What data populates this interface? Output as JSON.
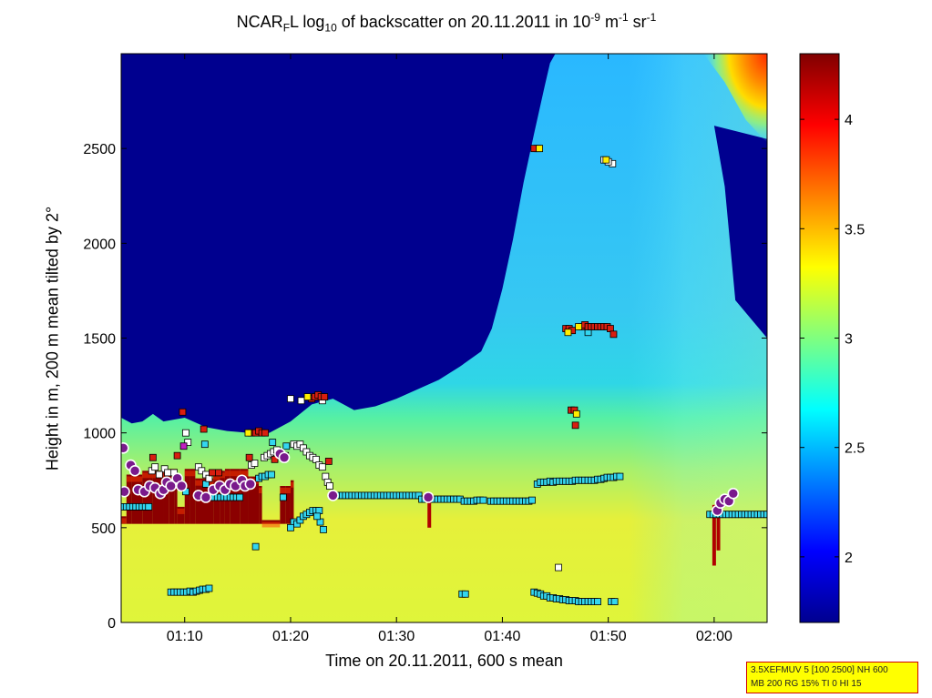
{
  "chart_data": {
    "type": "heatmap",
    "title": {
      "prefix": "NCAR",
      "sub1": "F",
      "mid1": "L log",
      "sub2": "10",
      "mid2": " of backscatter on 20.11.2011 in 10",
      "sup1": "-9",
      "mid3": " m",
      "sup2": "-1",
      "mid4": " sr",
      "sup3": "-1"
    },
    "xlabel": "Time on 20.11.2011, 600 s mean",
    "ylabel": "Height in m, 200 m mean tilted by 2°",
    "xlim_min": [
      64,
      125
    ],
    "ylim": [
      0,
      3000
    ],
    "xticks": [
      {
        "t": 70,
        "label": "01:10"
      },
      {
        "t": 80,
        "label": "01:20"
      },
      {
        "t": 90,
        "label": "01:30"
      },
      {
        "t": 100,
        "label": "01:40"
      },
      {
        "t": 110,
        "label": "01:50"
      },
      {
        "t": 120,
        "label": "02:00"
      }
    ],
    "yticks": [
      0,
      500,
      1000,
      1500,
      2000,
      2500
    ],
    "colorbar": {
      "range": [
        1.7,
        4.3
      ],
      "ticks": [
        2,
        2.5,
        3,
        3.5,
        4
      ],
      "colormap": "jet"
    },
    "aerosol_top_boundary": [
      [
        64,
        1080
      ],
      [
        65,
        1050
      ],
      [
        66,
        1060
      ],
      [
        67,
        1100
      ],
      [
        68,
        1060
      ],
      [
        70,
        1080
      ],
      [
        72,
        1030
      ],
      [
        74,
        1010
      ],
      [
        76,
        1000
      ],
      [
        78,
        1000
      ],
      [
        80,
        1060
      ],
      [
        82,
        1150
      ],
      [
        84,
        1180
      ],
      [
        86,
        1120
      ],
      [
        88,
        1140
      ],
      [
        90,
        1180
      ],
      [
        92,
        1230
      ],
      [
        94,
        1280
      ],
      [
        96,
        1350
      ],
      [
        98,
        1430
      ],
      [
        99,
        1550
      ],
      [
        100,
        1760
      ],
      [
        101,
        2020
      ],
      [
        102,
        2320
      ],
      [
        103,
        2580
      ],
      [
        104,
        2830
      ],
      [
        104.5,
        2950
      ],
      [
        105,
        3000
      ]
    ],
    "bright_band_right": [
      [
        112,
        3000
      ],
      [
        114,
        2700
      ],
      [
        115,
        2400
      ],
      [
        116,
        2100
      ],
      [
        117,
        1850
      ],
      [
        118,
        1600
      ],
      [
        119,
        1450
      ],
      [
        122,
        1420
      ],
      [
        125,
        1400
      ]
    ],
    "dark_blue_right_region": [
      [
        120,
        2620
      ],
      [
        121,
        2300
      ],
      [
        121.5,
        2000
      ],
      [
        122,
        1700
      ],
      [
        125,
        1500
      ],
      [
        125,
        2550
      ]
    ],
    "upper_right_hot_corner": [
      [
        119,
        3000
      ],
      [
        125,
        3000
      ],
      [
        125,
        2530
      ],
      [
        123,
        2650
      ],
      [
        121,
        2850
      ]
    ],
    "cloud_base_circles": [
      [
        64.2,
        920
      ],
      [
        64.3,
        690
      ],
      [
        64.9,
        830
      ],
      [
        65.3,
        800
      ],
      [
        65.6,
        700
      ],
      [
        66.2,
        690
      ],
      [
        66.7,
        720
      ],
      [
        67.2,
        710
      ],
      [
        67.7,
        680
      ],
      [
        68.0,
        700
      ],
      [
        68.3,
        740
      ],
      [
        68.7,
        720
      ],
      [
        69.3,
        760
      ],
      [
        69.7,
        720
      ],
      [
        71.3,
        670
      ],
      [
        72.0,
        660
      ],
      [
        72.7,
        700
      ],
      [
        73.3,
        720
      ],
      [
        73.8,
        700
      ],
      [
        74.3,
        730
      ],
      [
        74.8,
        720
      ],
      [
        75.4,
        750
      ],
      [
        75.7,
        720
      ],
      [
        76.2,
        730
      ],
      [
        79.0,
        890
      ],
      [
        79.4,
        870
      ],
      [
        84.0,
        670
      ],
      [
        93.0,
        660
      ],
      [
        120.3,
        590
      ],
      [
        120.6,
        630
      ],
      [
        121.0,
        650
      ],
      [
        121.4,
        640
      ],
      [
        121.8,
        680
      ]
    ],
    "cloud_base_color": "#7a1a8c",
    "square_markers_cyan": [
      [
        64.2,
        610
      ],
      [
        64.5,
        610
      ],
      [
        64.8,
        610
      ],
      [
        65.1,
        610
      ],
      [
        65.4,
        610
      ],
      [
        65.7,
        610
      ],
      [
        66.0,
        610
      ],
      [
        66.3,
        610
      ],
      [
        66.6,
        610
      ],
      [
        68.7,
        160
      ],
      [
        69.0,
        160
      ],
      [
        69.3,
        160
      ],
      [
        69.6,
        160
      ],
      [
        69.9,
        160
      ],
      [
        70.2,
        160
      ],
      [
        70.5,
        165
      ],
      [
        70.8,
        160
      ],
      [
        71.1,
        165
      ],
      [
        71.4,
        170
      ],
      [
        71.7,
        175
      ],
      [
        72.0,
        175
      ],
      [
        72.3,
        180
      ],
      [
        72.5,
        660
      ],
      [
        72.8,
        660
      ],
      [
        73.1,
        660
      ],
      [
        73.4,
        660
      ],
      [
        73.7,
        660
      ],
      [
        74.0,
        660
      ],
      [
        74.3,
        660
      ],
      [
        74.6,
        660
      ],
      [
        74.9,
        660
      ],
      [
        75.2,
        660
      ],
      [
        77.0,
        760
      ],
      [
        77.3,
        770
      ],
      [
        77.6,
        770
      ],
      [
        77.9,
        780
      ],
      [
        78.2,
        780
      ],
      [
        76.7,
        400
      ],
      [
        79.3,
        660
      ],
      [
        80.3,
        530
      ],
      [
        80.6,
        520
      ],
      [
        80.9,
        540
      ],
      [
        81.2,
        560
      ],
      [
        81.5,
        570
      ],
      [
        81.8,
        580
      ],
      [
        82.1,
        590
      ],
      [
        82.4,
        590
      ],
      [
        82.7,
        590
      ],
      [
        82.8,
        530
      ],
      [
        83.1,
        490
      ],
      [
        82.5,
        560
      ],
      [
        84.3,
        670
      ],
      [
        84.6,
        670
      ],
      [
        84.9,
        670
      ],
      [
        85.2,
        670
      ],
      [
        85.5,
        670
      ],
      [
        85.8,
        670
      ],
      [
        86.1,
        670
      ],
      [
        86.4,
        670
      ],
      [
        86.7,
        670
      ],
      [
        87.0,
        670
      ],
      [
        87.3,
        670
      ],
      [
        87.6,
        670
      ],
      [
        87.9,
        670
      ],
      [
        88.2,
        670
      ],
      [
        88.5,
        670
      ],
      [
        88.8,
        670
      ],
      [
        89.1,
        670
      ],
      [
        89.4,
        670
      ],
      [
        89.7,
        670
      ],
      [
        90.0,
        670
      ],
      [
        90.3,
        670
      ],
      [
        90.6,
        670
      ],
      [
        90.9,
        670
      ],
      [
        91.2,
        670
      ],
      [
        91.5,
        670
      ],
      [
        91.8,
        670
      ],
      [
        92.1,
        670
      ],
      [
        92.4,
        650
      ],
      [
        92.7,
        650
      ],
      [
        93.0,
        650
      ],
      [
        93.3,
        650
      ],
      [
        93.6,
        650
      ],
      [
        93.9,
        650
      ],
      [
        94.2,
        650
      ],
      [
        94.5,
        650
      ],
      [
        94.8,
        650
      ],
      [
        95.1,
        650
      ],
      [
        95.4,
        650
      ],
      [
        95.7,
        650
      ],
      [
        96.0,
        650
      ],
      [
        96.4,
        640
      ],
      [
        96.7,
        640
      ],
      [
        97.0,
        640
      ],
      [
        97.3,
        640
      ],
      [
        97.6,
        645
      ],
      [
        97.9,
        645
      ],
      [
        98.2,
        645
      ],
      [
        98.9,
        640
      ],
      [
        99.2,
        640
      ],
      [
        99.5,
        640
      ],
      [
        99.8,
        640
      ],
      [
        100.1,
        640
      ],
      [
        100.4,
        640
      ],
      [
        100.7,
        640
      ],
      [
        101.0,
        640
      ],
      [
        101.3,
        640
      ],
      [
        101.6,
        640
      ],
      [
        101.9,
        640
      ],
      [
        102.2,
        640
      ],
      [
        102.5,
        640
      ],
      [
        102.8,
        645
      ],
      [
        96.2,
        150
      ],
      [
        96.5,
        150
      ],
      [
        103.0,
        160
      ],
      [
        103.3,
        155
      ],
      [
        103.6,
        150
      ],
      [
        103.9,
        140
      ],
      [
        104.2,
        140
      ],
      [
        104.5,
        130
      ],
      [
        104.8,
        130
      ],
      [
        105.1,
        125
      ],
      [
        105.4,
        125
      ],
      [
        105.7,
        120
      ],
      [
        106.0,
        120
      ],
      [
        106.3,
        115
      ],
      [
        106.6,
        115
      ],
      [
        106.9,
        115
      ],
      [
        107.2,
        110
      ],
      [
        107.5,
        110
      ],
      [
        107.8,
        110
      ],
      [
        108.1,
        110
      ],
      [
        108.4,
        110
      ],
      [
        108.7,
        110
      ],
      [
        109.0,
        110
      ],
      [
        110.3,
        110
      ],
      [
        110.6,
        110
      ],
      [
        103.3,
        730
      ],
      [
        103.6,
        740
      ],
      [
        103.9,
        740
      ],
      [
        104.2,
        740
      ],
      [
        104.5,
        745
      ],
      [
        104.8,
        740
      ],
      [
        105.1,
        745
      ],
      [
        105.4,
        745
      ],
      [
        105.7,
        745
      ],
      [
        106.0,
        745
      ],
      [
        106.3,
        745
      ],
      [
        106.6,
        745
      ],
      [
        106.9,
        750
      ],
      [
        107.2,
        750
      ],
      [
        107.5,
        750
      ],
      [
        107.8,
        750
      ],
      [
        108.1,
        750
      ],
      [
        108.4,
        750
      ],
      [
        108.7,
        750
      ],
      [
        109.0,
        755
      ],
      [
        109.3,
        755
      ],
      [
        109.6,
        760
      ],
      [
        109.9,
        765
      ],
      [
        110.2,
        765
      ],
      [
        110.5,
        765
      ],
      [
        110.8,
        770
      ],
      [
        111.1,
        770
      ],
      [
        119.6,
        570
      ],
      [
        119.9,
        570
      ],
      [
        120.2,
        570
      ],
      [
        120.5,
        570
      ],
      [
        120.8,
        570
      ],
      [
        121.1,
        570
      ],
      [
        121.4,
        570
      ],
      [
        121.7,
        570
      ],
      [
        122.0,
        570
      ],
      [
        122.3,
        570
      ],
      [
        122.6,
        570
      ],
      [
        122.9,
        570
      ],
      [
        123.2,
        570
      ],
      [
        123.5,
        570
      ],
      [
        123.8,
        570
      ],
      [
        124.1,
        570
      ],
      [
        124.4,
        570
      ],
      [
        124.7,
        570
      ],
      [
        125.0,
        570
      ],
      [
        108.1,
        1530
      ],
      [
        71.9,
        940
      ],
      [
        78.3,
        950
      ],
      [
        79.6,
        930
      ],
      [
        72.0,
        730
      ],
      [
        70.1,
        690
      ],
      [
        80.0,
        500
      ]
    ],
    "square_markers_white": [
      [
        80.0,
        1180
      ],
      [
        81.0,
        1170
      ],
      [
        83.0,
        1170
      ],
      [
        71.3,
        820
      ],
      [
        71.6,
        800
      ],
      [
        72.0,
        780
      ],
      [
        72.3,
        760
      ],
      [
        69.0,
        790
      ],
      [
        70.1,
        1000
      ],
      [
        70.3,
        950
      ],
      [
        77.5,
        870
      ],
      [
        77.8,
        880
      ],
      [
        78.1,
        890
      ],
      [
        78.4,
        900
      ],
      [
        78.7,
        910
      ],
      [
        80.3,
        940
      ],
      [
        80.6,
        930
      ],
      [
        80.9,
        940
      ],
      [
        81.2,
        920
      ],
      [
        81.5,
        900
      ],
      [
        81.8,
        880
      ],
      [
        82.1,
        870
      ],
      [
        82.4,
        860
      ],
      [
        82.7,
        830
      ],
      [
        83.0,
        820
      ],
      [
        83.3,
        770
      ],
      [
        83.5,
        740
      ],
      [
        83.7,
        720
      ],
      [
        76.3,
        830
      ],
      [
        76.6,
        840
      ],
      [
        66.9,
        800
      ],
      [
        67.2,
        820
      ],
      [
        68.1,
        810
      ],
      [
        68.4,
        790
      ],
      [
        67.6,
        780
      ],
      [
        110.4,
        2420
      ],
      [
        110.0,
        2430
      ],
      [
        109.6,
        2440
      ],
      [
        105.3,
        290
      ]
    ],
    "square_markers_red": [
      [
        69.8,
        1110
      ],
      [
        71.8,
        1020
      ],
      [
        76.3,
        1000
      ],
      [
        76.7,
        1000
      ],
      [
        77.0,
        1010
      ],
      [
        77.3,
        1000
      ],
      [
        77.6,
        1000
      ],
      [
        82.0,
        1180
      ],
      [
        82.3,
        1190
      ],
      [
        82.6,
        1200
      ],
      [
        82.9,
        1190
      ],
      [
        83.2,
        1190
      ],
      [
        103.3,
        2500
      ],
      [
        103.0,
        2500
      ],
      [
        106.0,
        1550
      ],
      [
        106.3,
        1550
      ],
      [
        106.6,
        1540
      ],
      [
        107.5,
        1560
      ],
      [
        107.8,
        1570
      ],
      [
        108.1,
        1560
      ],
      [
        108.4,
        1560
      ],
      [
        108.7,
        1560
      ],
      [
        109.0,
        1560
      ],
      [
        109.3,
        1560
      ],
      [
        109.6,
        1560
      ],
      [
        109.9,
        1560
      ],
      [
        110.2,
        1550
      ],
      [
        110.5,
        1520
      ],
      [
        106.5,
        1120
      ],
      [
        106.8,
        1120
      ],
      [
        106.9,
        1040
      ],
      [
        83.6,
        850
      ],
      [
        76.1,
        870
      ],
      [
        78.5,
        860
      ],
      [
        79.5,
        880
      ],
      [
        67.0,
        870
      ],
      [
        69.3,
        880
      ],
      [
        72.6,
        790
      ],
      [
        73.2,
        790
      ]
    ],
    "square_markers_yellow": [
      [
        106.2,
        1530
      ],
      [
        107.0,
        1100
      ],
      [
        109.8,
        2440
      ],
      [
        76.0,
        1000
      ],
      [
        81.6,
        1190
      ],
      [
        103.5,
        2500
      ],
      [
        107.2,
        1560
      ]
    ],
    "square_markers_magenta": [
      [
        69.9,
        930
      ]
    ],
    "dark_red_layer": [
      [
        64,
        540
      ],
      [
        64.5,
        560
      ],
      [
        65,
        780
      ],
      [
        66,
        780
      ],
      [
        67,
        800
      ],
      [
        68,
        790
      ],
      [
        68.5,
        570
      ],
      [
        69,
        810
      ],
      [
        69.3,
        570
      ],
      [
        70,
        610
      ],
      [
        70.5,
        810
      ],
      [
        71,
        560
      ],
      [
        72.7,
        760
      ],
      [
        73.3,
        790
      ],
      [
        73.8,
        800
      ],
      [
        74.3,
        810
      ],
      [
        75.2,
        810
      ],
      [
        76,
        770
      ],
      [
        77,
        720
      ],
      [
        77.3,
        530
      ],
      [
        79,
        540
      ],
      [
        79.5,
        720
      ],
      [
        80,
        560
      ],
      [
        80.3,
        750
      ]
    ]
  },
  "info_box": {
    "line1": "3.5XEFMUV 5 [100 2500] NH 600",
    "line2": "MB 200 RG 15% TI 0 HI 15"
  }
}
